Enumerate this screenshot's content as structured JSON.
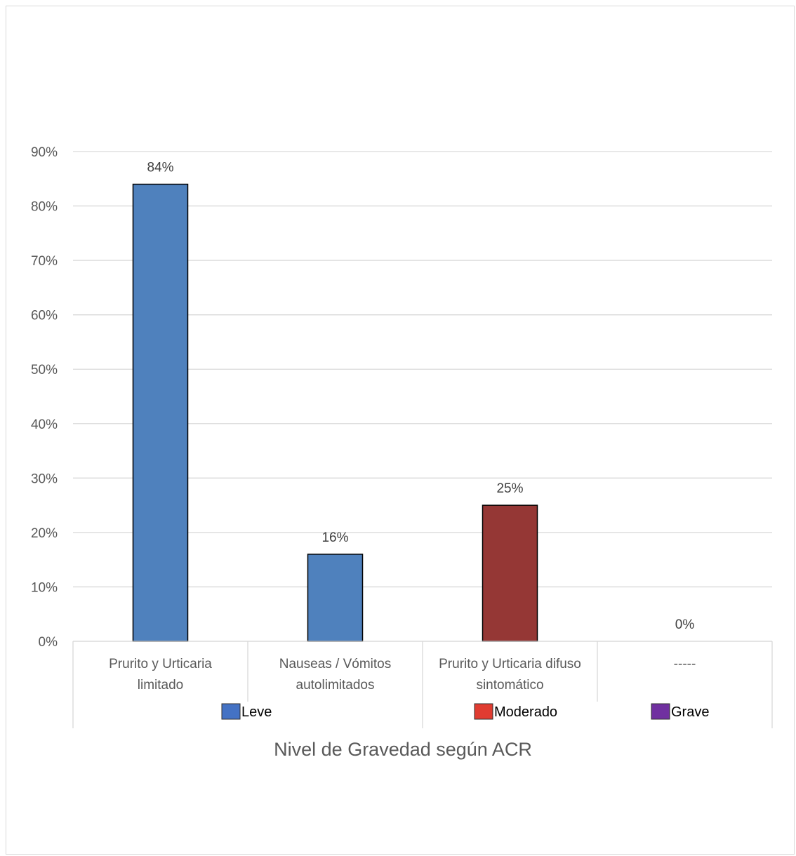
{
  "chart_data": {
    "type": "bar",
    "categories": [
      [
        "Prurito y Urticaria",
        "limitado"
      ],
      [
        "Nauseas  / Vómitos",
        "autolimitados"
      ],
      [
        "Prurito y Urticaria difuso",
        "sintomático"
      ],
      [
        "-----"
      ]
    ],
    "values": [
      84,
      16,
      25,
      0
    ],
    "data_labels": [
      "84%",
      "16%",
      "25%",
      "0%"
    ],
    "bar_groups": [
      "Leve",
      "Leve",
      "Moderado",
      "Grave"
    ],
    "groups": [
      {
        "name": "Leve",
        "color": "#4472c4"
      },
      {
        "name": "Moderado",
        "color": "#e03c31"
      },
      {
        "name": "Grave",
        "color": "#7030a0"
      }
    ],
    "bar_colors": [
      "#4f81bd",
      "#4f81bd",
      "#953735",
      "#7030a0"
    ],
    "ylim": [
      0,
      90
    ],
    "yticks": [
      0,
      10,
      20,
      30,
      40,
      50,
      60,
      70,
      80,
      90
    ],
    "ytick_labels": [
      "0%",
      "10%",
      "20%",
      "30%",
      "40%",
      "50%",
      "60%",
      "70%",
      "80%",
      "90%"
    ],
    "xlabel": "Nivel de Gravedad según ACR",
    "ylabel": "",
    "title": "",
    "grid": true,
    "legend": "below categories"
  }
}
